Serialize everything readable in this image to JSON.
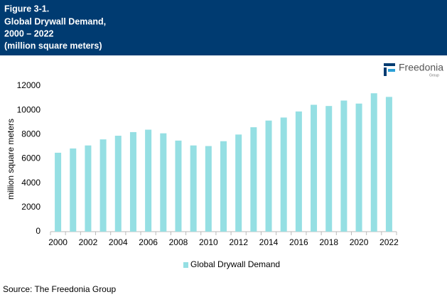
{
  "chart_data": {
    "type": "bar",
    "figure_label": "Figure 3-1.",
    "title_lines": [
      "Global Drywall Demand,",
      "2000 – 2022",
      "(million square meters)"
    ],
    "y_label": "million square meters",
    "categories": [
      "2000",
      null,
      "2002",
      null,
      "2004",
      null,
      "2006",
      null,
      "2008",
      null,
      "2010",
      null,
      "2012",
      null,
      "2014",
      null,
      "2016",
      null,
      "2018",
      null,
      "2020",
      null,
      "2022"
    ],
    "series": [
      {
        "name": "Global Drywall Demand",
        "color": "#95dfe3",
        "values": [
          6500,
          6850,
          7100,
          7600,
          7900,
          8200,
          8400,
          8100,
          7500,
          7100,
          7050,
          7450,
          8000,
          8600,
          9150,
          9400,
          9900,
          10450,
          10350,
          10800,
          10550,
          11400,
          11100
        ]
      }
    ],
    "ylim": [
      0,
      12000
    ],
    "yticks": [
      0,
      2000,
      4000,
      6000,
      8000,
      10000,
      12000
    ],
    "grid": false,
    "legend_position": "bottom",
    "source": "Source: The Freedonia Group",
    "logo": {
      "name": "Freedonia",
      "sub": "Group"
    }
  }
}
